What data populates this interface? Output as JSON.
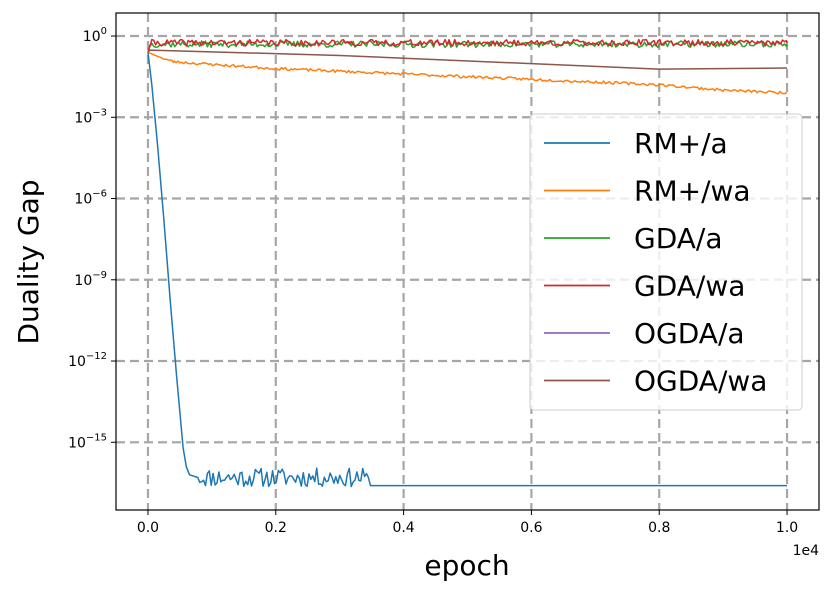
{
  "chart_data": {
    "type": "line",
    "title": "",
    "xlabel": "epoch",
    "ylabel": "Duality Gap",
    "x_offset_label": "1e4",
    "x_scale": "linear",
    "y_scale": "log",
    "xlim": [
      -500,
      10500
    ],
    "ylog_lim": [
      -17.5,
      0.85
    ],
    "x_ticks": [
      {
        "value": 0,
        "label": "0.0"
      },
      {
        "value": 2000,
        "label": "0.2"
      },
      {
        "value": 4000,
        "label": "0.4"
      },
      {
        "value": 6000,
        "label": "0.6"
      },
      {
        "value": 8000,
        "label": "0.8"
      },
      {
        "value": 10000,
        "label": "1.0"
      }
    ],
    "y_ticks": [
      {
        "exp": 0,
        "base": "10",
        "sup": "0"
      },
      {
        "exp": -3,
        "base": "10",
        "sup": "−3"
      },
      {
        "exp": -6,
        "base": "10",
        "sup": "−6"
      },
      {
        "exp": -9,
        "base": "10",
        "sup": "−9"
      },
      {
        "exp": -12,
        "base": "10",
        "sup": "−12"
      },
      {
        "exp": -15,
        "base": "10",
        "sup": "−15"
      }
    ],
    "grid": true,
    "legend_position": "right",
    "series": [
      {
        "name": "RM+/a",
        "color": "#1f77b4",
        "noise": 0.35,
        "noise_range": [
          780,
          3450
        ],
        "noise_seed": 11,
        "points": [
          [
            0,
            -0.6
          ],
          [
            60,
            -1.8
          ],
          [
            150,
            -4.0
          ],
          [
            250,
            -6.8
          ],
          [
            350,
            -9.8
          ],
          [
            450,
            -12.6
          ],
          [
            550,
            -15.2
          ],
          [
            600,
            -15.9
          ],
          [
            650,
            -16.2
          ],
          [
            780,
            -16.3
          ],
          [
            3450,
            -16.3
          ],
          [
            3480,
            -16.6
          ],
          [
            10000,
            -16.6
          ]
        ]
      },
      {
        "name": "RM+/wa",
        "color": "#ff7f0e",
        "noise": 0.05,
        "noise_range": [
          200,
          10000
        ],
        "noise_seed": 23,
        "points": [
          [
            0,
            -0.6
          ],
          [
            150,
            -0.75
          ],
          [
            400,
            -0.95
          ],
          [
            1000,
            -1.05
          ],
          [
            2000,
            -1.2
          ],
          [
            4000,
            -1.4
          ],
          [
            6000,
            -1.6
          ],
          [
            8000,
            -1.8
          ],
          [
            9000,
            -2.0
          ],
          [
            10000,
            -2.1
          ]
        ]
      },
      {
        "name": "GDA/a",
        "color": "#2ca02c",
        "noise": 0.12,
        "noise_range": [
          30,
          10000
        ],
        "noise_seed": 37,
        "points": [
          [
            0,
            -0.6
          ],
          [
            40,
            -0.3
          ],
          [
            10000,
            -0.3
          ]
        ]
      },
      {
        "name": "GDA/wa",
        "color": "#d62728",
        "noise": 0.12,
        "noise_range": [
          30,
          10000
        ],
        "noise_seed": 41,
        "points": [
          [
            0,
            -0.6
          ],
          [
            40,
            -0.25
          ],
          [
            10000,
            -0.25
          ]
        ]
      },
      {
        "name": "OGDA/a",
        "color": "#9467bd",
        "noise": 0,
        "noise_range": [
          0,
          0
        ],
        "noise_seed": 5,
        "points": [
          [
            0,
            -0.6
          ],
          [
            20,
            -0.55
          ]
        ]
      },
      {
        "name": "OGDA/wa",
        "color": "#8c564b",
        "noise": 0,
        "noise_range": [
          0,
          0
        ],
        "noise_seed": 7,
        "points": [
          [
            0,
            -0.6
          ],
          [
            30,
            -0.52
          ],
          [
            3000,
            -0.72
          ],
          [
            8000,
            -1.22
          ],
          [
            10000,
            -1.18
          ]
        ]
      }
    ]
  }
}
